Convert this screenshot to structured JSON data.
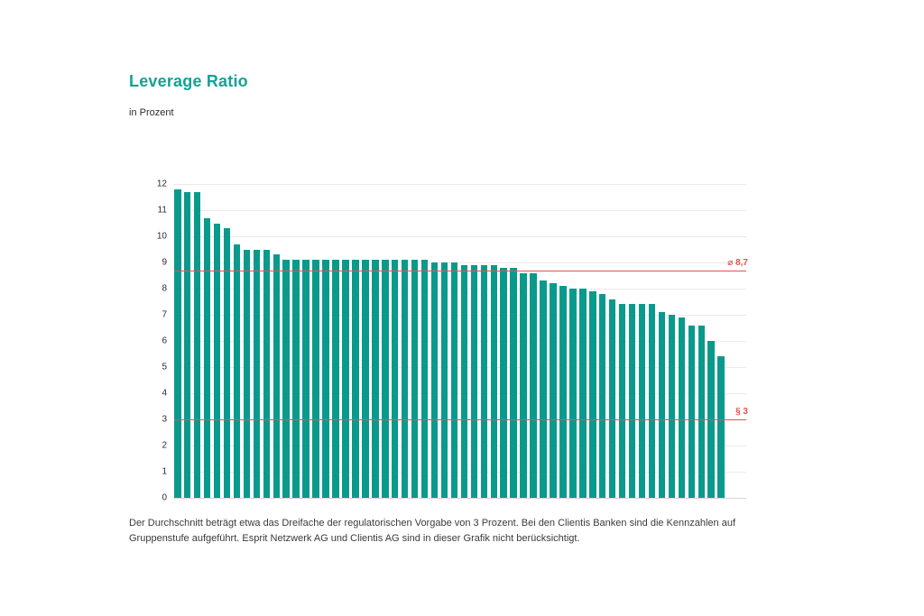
{
  "header": {
    "title": "Leverage Ratio",
    "subtitle": "in Prozent"
  },
  "chart_data": {
    "type": "bar",
    "title": "Leverage Ratio",
    "subtitle": "in Prozent",
    "unit": "Prozent",
    "values": [
      11.8,
      11.7,
      11.7,
      10.7,
      10.5,
      10.3,
      9.7,
      9.5,
      9.5,
      9.5,
      9.3,
      9.1,
      9.1,
      9.1,
      9.1,
      9.1,
      9.1,
      9.1,
      9.1,
      9.1,
      9.1,
      9.1,
      9.1,
      9.1,
      9.1,
      9.1,
      9.0,
      9.0,
      9.0,
      8.9,
      8.9,
      8.9,
      8.9,
      8.8,
      8.8,
      8.6,
      8.6,
      8.3,
      8.2,
      8.1,
      8.0,
      8.0,
      7.9,
      7.8,
      7.6,
      7.4,
      7.4,
      7.4,
      7.4,
      7.1,
      7.0,
      6.9,
      6.6,
      6.6,
      6.0,
      5.4
    ],
    "ylim": [
      0,
      12
    ],
    "yticks": [
      0,
      1,
      2,
      3,
      4,
      5,
      6,
      7,
      8,
      9,
      10,
      11,
      12
    ],
    "grid": true,
    "legend": "none",
    "bar_color": "#0a9a8b",
    "grid_color": "#ebebeb",
    "reference_lines": [
      {
        "value": 8.7,
        "label": "⌀ 8,7",
        "color": "#e2544b"
      },
      {
        "value": 3,
        "label": "§ 3",
        "color": "#e2544b"
      }
    ]
  },
  "footnote": {
    "text": "Der Durchschnitt beträgt etwa das Dreifache der regulatorischen Vorgabe von 3 Prozent. Bei den Clientis Banken sind die Kennzahlen auf Gruppenstufe aufgeführt. Esprit Netzwerk AG und Clientis AG sind in dieser Grafik nicht berücksichtigt."
  }
}
